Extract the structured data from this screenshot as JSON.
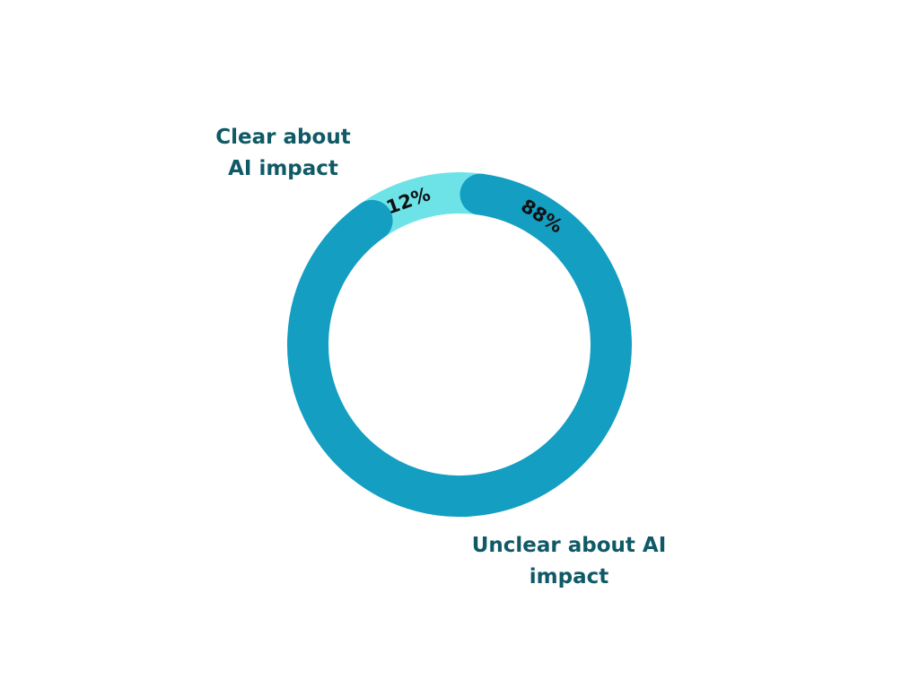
{
  "chart_data": {
    "type": "donut",
    "categories": [
      "Clear about AI impact",
      "Unclear about AI impact"
    ],
    "values": [
      12,
      88
    ],
    "value_labels": [
      "12%",
      "88%"
    ],
    "colors": [
      "#6de3e8",
      "#139ec2"
    ]
  }
}
